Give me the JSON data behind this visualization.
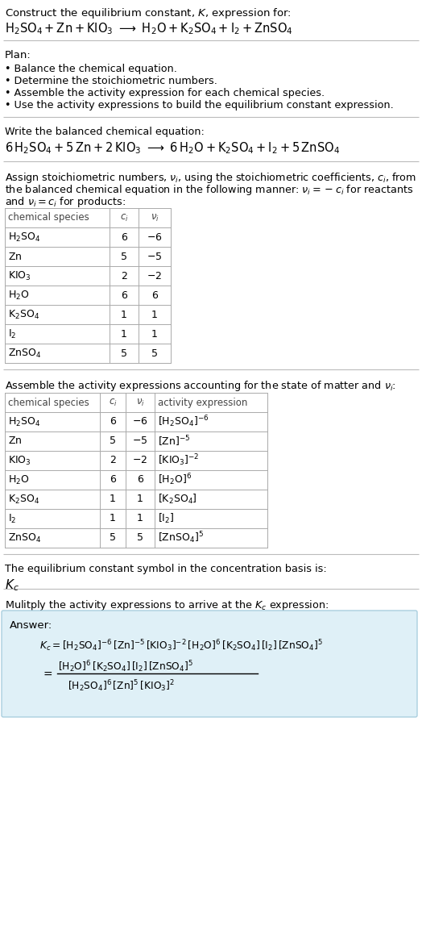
{
  "bg_color": "#ffffff",
  "text_color": "#000000",
  "table1_rows": [
    [
      "H_2SO_4",
      "6",
      "-6"
    ],
    [
      "Zn",
      "5",
      "-5"
    ],
    [
      "KIO_3",
      "2",
      "-2"
    ],
    [
      "H_2O",
      "6",
      "6"
    ],
    [
      "K_2SO_4",
      "1",
      "1"
    ],
    [
      "I_2",
      "1",
      "1"
    ],
    [
      "ZnSO_4",
      "5",
      "5"
    ]
  ],
  "table2_rows": [
    [
      "H_2SO_4",
      "6",
      "-6",
      "[H_2SO_4]^{-6}"
    ],
    [
      "Zn",
      "5",
      "-5",
      "[Zn]^{-5}"
    ],
    [
      "KIO_3",
      "2",
      "-2",
      "[KIO_3]^{-2}"
    ],
    [
      "H_2O",
      "6",
      "6",
      "[H_2O]^{6}"
    ],
    [
      "K_2SO_4",
      "1",
      "1",
      "[K_2SO_4]"
    ],
    [
      "I_2",
      "1",
      "1",
      "[I_2]"
    ],
    [
      "ZnSO_4",
      "5",
      "5",
      "[ZnSO_4]^{5}"
    ]
  ],
  "answer_box_color": "#dff0f7",
  "answer_box_border": "#aacfdf"
}
